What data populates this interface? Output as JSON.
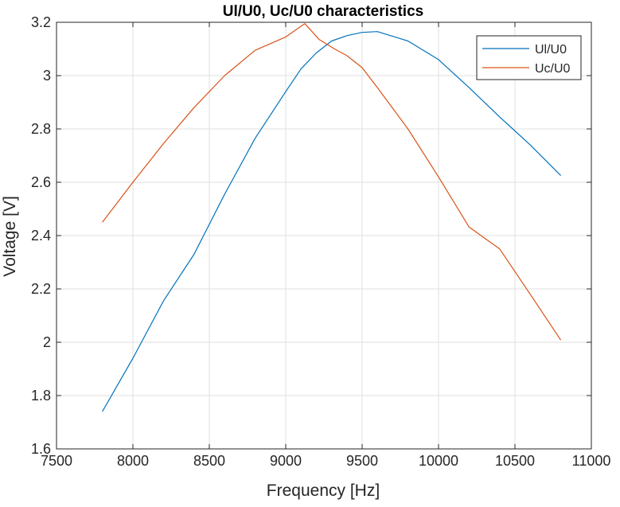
{
  "chart_data": {
    "type": "line",
    "title": "Ul/U0, Uc/U0 characteristics",
    "xlabel": "Frequency [Hz]",
    "ylabel": "Voltage [V]",
    "xlim": [
      7500,
      11000
    ],
    "ylim": [
      1.6,
      3.2
    ],
    "xticks": [
      7500,
      8000,
      8500,
      9000,
      9500,
      10000,
      10500,
      11000
    ],
    "xtick_labels": [
      "7500",
      "8000",
      "8500",
      "9000",
      "9500",
      "10000",
      "10500",
      "11000"
    ],
    "yticks": [
      1.6,
      1.8,
      2.0,
      2.2,
      2.4,
      2.6,
      2.8,
      3.0,
      3.2
    ],
    "ytick_labels": [
      "1.6",
      "1.8",
      "2",
      "2.2",
      "2.4",
      "2.6",
      "2.8",
      "3",
      "3.2"
    ],
    "grid": true,
    "legend_position": "top-right",
    "series": [
      {
        "name": "Ul/U0",
        "color": "#0072bd",
        "x": [
          7800,
          8000,
          8200,
          8400,
          8600,
          8800,
          9000,
          9100,
          9200,
          9300,
          9400,
          9500,
          9600,
          9800,
          10000,
          10200,
          10400,
          10600,
          10800
        ],
        "y": [
          1.74,
          1.94,
          2.155,
          2.33,
          2.555,
          2.765,
          2.94,
          3.025,
          3.085,
          3.13,
          3.15,
          3.162,
          3.165,
          3.13,
          3.06,
          2.955,
          2.845,
          2.74,
          2.625
        ]
      },
      {
        "name": "Uc/U0",
        "color": "#d95319",
        "x": [
          7800,
          8000,
          8200,
          8400,
          8600,
          8800,
          9000,
          9100,
          9125,
          9220,
          9320,
          9400,
          9500,
          9600,
          9800,
          10000,
          10200,
          10400,
          10600,
          10800
        ],
        "y": [
          2.45,
          2.6,
          2.745,
          2.88,
          3.0,
          3.095,
          3.145,
          3.185,
          3.195,
          3.135,
          3.1,
          3.075,
          3.03,
          2.955,
          2.8,
          2.62,
          2.432,
          2.35,
          2.18,
          2.008
        ]
      }
    ]
  }
}
